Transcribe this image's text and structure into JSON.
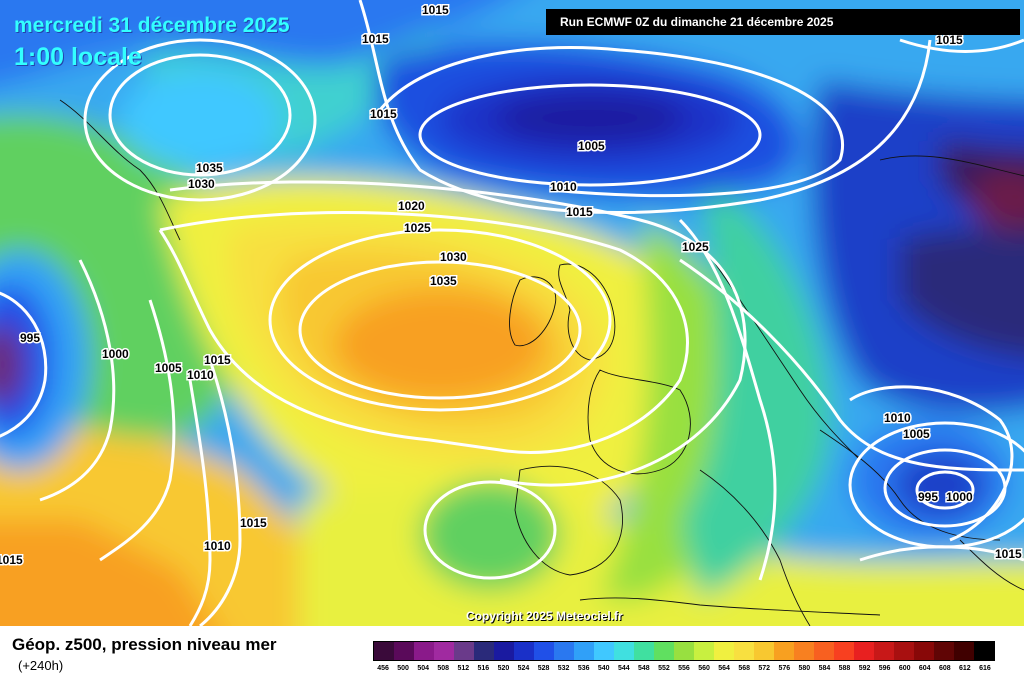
{
  "header": {
    "date": "mercredi 31 décembre 2025",
    "time": "1:00 locale",
    "run": "Run ECMWF 0Z du dimanche 21 décembre 2025"
  },
  "copyright": "Copyright 2025 Meteociel.fr",
  "footer": {
    "field_title": "Géop. z500, pression niveau mer",
    "lead_time": "(+240h)"
  },
  "legend": {
    "ticks": [
      "456",
      "500",
      "504",
      "508",
      "512",
      "516",
      "520",
      "524",
      "528",
      "532",
      "536",
      "540",
      "544",
      "548",
      "552",
      "556",
      "560",
      "564",
      "568",
      "572",
      "576",
      "580",
      "584",
      "588",
      "592",
      "596",
      "600",
      "604",
      "608",
      "612",
      "616"
    ],
    "colors": [
      "#3a0a3a",
      "#5a0a5a",
      "#8a1a8a",
      "#a02aa0",
      "#6a3a8a",
      "#2a2a7a",
      "#1a1aa0",
      "#1a30c8",
      "#2050e8",
      "#2a78f0",
      "#30a0f8",
      "#40c8ff",
      "#40e0e0",
      "#40e0a0",
      "#60e060",
      "#98e040",
      "#c8f040",
      "#f0f040",
      "#f8e040",
      "#f8c830",
      "#f8a020",
      "#f88020",
      "#f86020",
      "#f84020",
      "#e82020",
      "#c81818",
      "#a81010",
      "#880808",
      "#600505",
      "#400000",
      "#000000"
    ]
  },
  "pressure_labels": [
    "1015",
    "1015",
    "1015",
    "1015",
    "1005",
    "1010",
    "1015",
    "1020",
    "1025",
    "1030",
    "1035",
    "1035",
    "1030",
    "1025",
    "995",
    "1000",
    "1005",
    "1010",
    "1015",
    "1015",
    "1010",
    "1015",
    "1010",
    "1005",
    "995",
    "1000",
    "1015"
  ],
  "colors": {
    "contour": "#ffffff",
    "title_text": "#33ffff"
  }
}
